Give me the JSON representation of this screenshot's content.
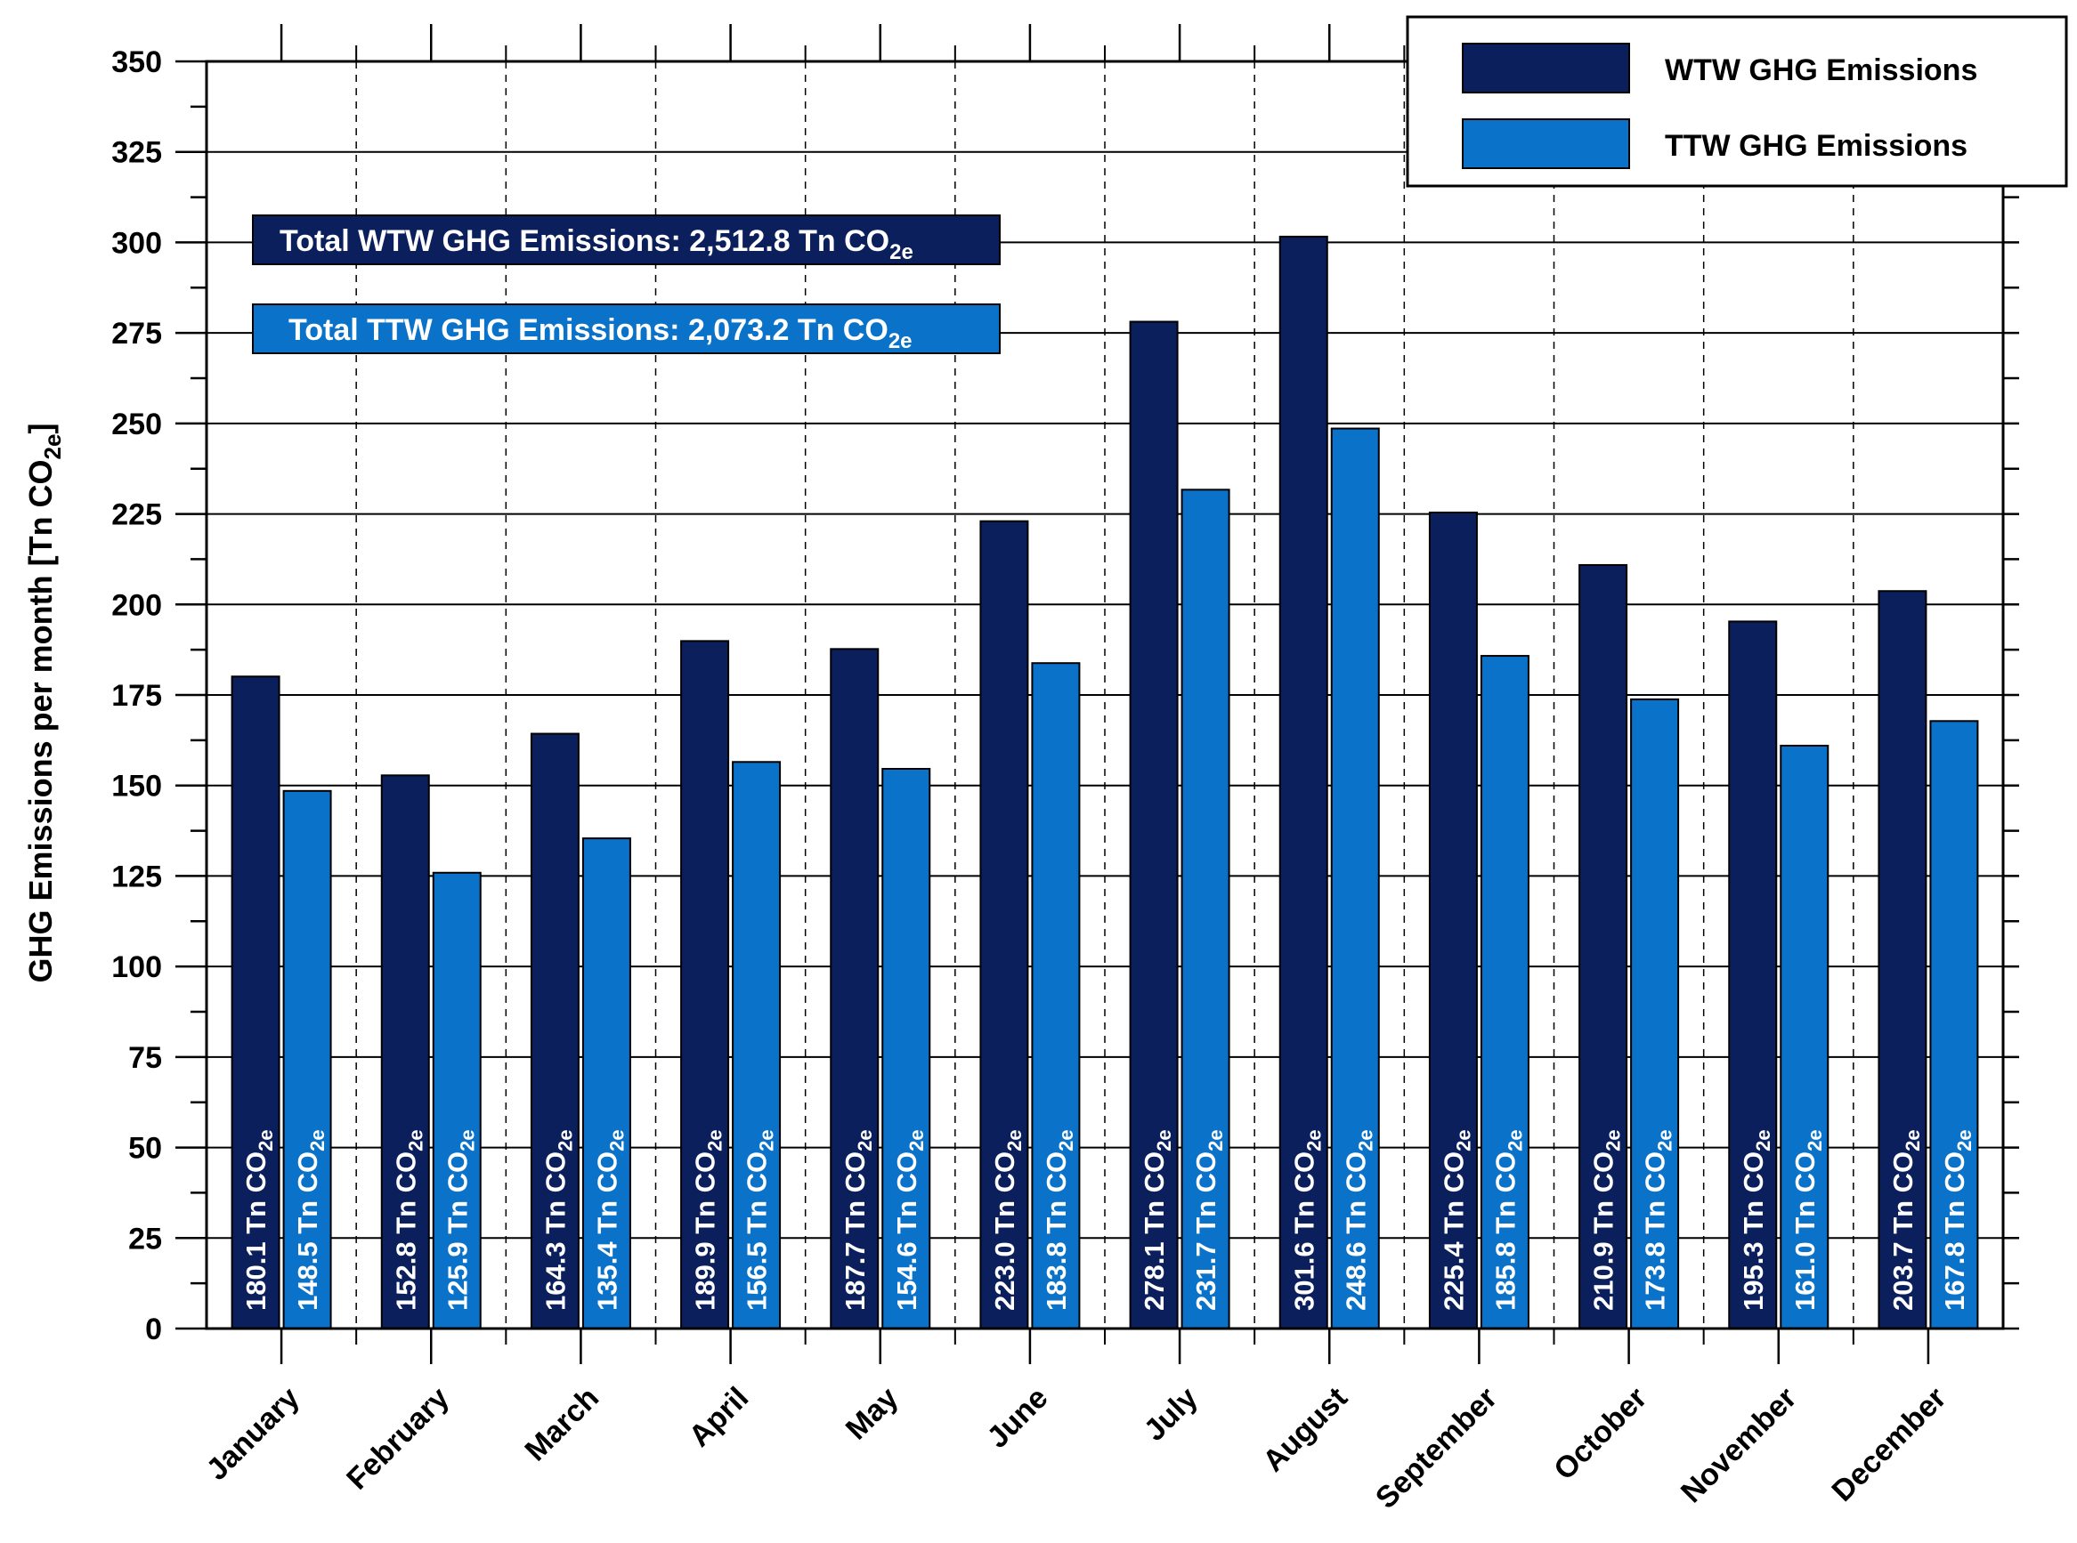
{
  "chart_data": {
    "type": "bar",
    "categories": [
      "January",
      "February",
      "March",
      "April",
      "May",
      "June",
      "July",
      "August",
      "September",
      "October",
      "November",
      "December"
    ],
    "series": [
      {
        "name": "WTW GHG Emissions",
        "color": "#0a1f5c",
        "values": [
          180.1,
          152.8,
          164.3,
          189.9,
          187.7,
          223.0,
          278.1,
          301.6,
          225.4,
          210.9,
          195.3,
          203.7
        ],
        "labels": [
          "180.1",
          "152.8",
          "164.3",
          "189.9",
          "187.7",
          "223.0",
          "278.1",
          "301.6",
          "225.4",
          "210.9",
          "195.3",
          "203.7"
        ]
      },
      {
        "name": "TTW GHG Emissions",
        "color": "#0a72c8",
        "values": [
          148.5,
          125.9,
          135.4,
          156.5,
          154.6,
          183.8,
          231.7,
          248.6,
          185.8,
          173.8,
          161.0,
          167.8
        ],
        "labels": [
          "148.5",
          "125.9",
          "135.4",
          "156.5",
          "154.6",
          "183.8",
          "231.7",
          "248.6",
          "185.8",
          "173.8",
          "161.0",
          "167.8"
        ]
      }
    ],
    "value_label_unit": "Tn CO",
    "value_label_unit_sub": "2e",
    "ylabel": "GHG Emissions per month [Tn CO",
    "ylabel_sub": "2e",
    "ylabel_close": "]",
    "ylim": [
      0,
      350
    ],
    "yticks": [
      "0",
      "25",
      "50",
      "75",
      "100",
      "125",
      "150",
      "175",
      "200",
      "225",
      "250",
      "275",
      "300",
      "325",
      "350"
    ],
    "grid": "horizontal solid, vertical dashed",
    "legend_position": "top-right",
    "annotations": [
      {
        "text": "Total WTW GHG Emissions: 2,512.8 Tn CO",
        "sub": "2e",
        "background": "#0a1f5c"
      },
      {
        "text": "Total TTW GHG Emissions: 2,073.2 Tn CO",
        "sub": "2e",
        "background": "#0a72c8"
      }
    ]
  }
}
